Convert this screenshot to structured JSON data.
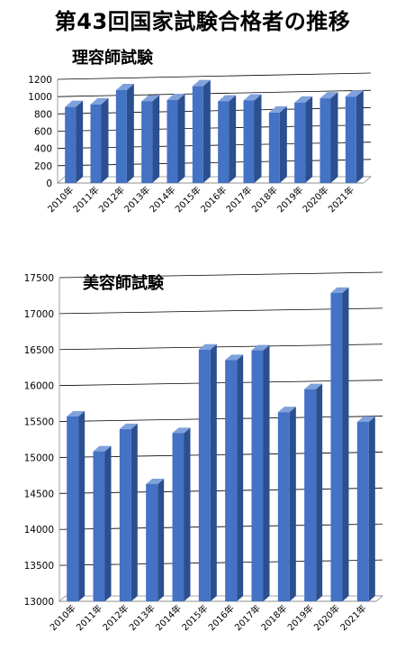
{
  "main_title": "第43回国家試験合格者の推移",
  "chart_data": [
    {
      "type": "bar",
      "title": "理容師試験",
      "categories": [
        "2010年",
        "2011年",
        "2012年",
        "2013年",
        "2014年",
        "2015年",
        "2016年",
        "2017年",
        "2018年",
        "2019年",
        "2020年",
        "2021年"
      ],
      "values": [
        880,
        910,
        1075,
        945,
        960,
        1120,
        945,
        955,
        815,
        930,
        980,
        1000
      ],
      "ylim": [
        0,
        1200
      ],
      "yticks": [
        0,
        200,
        400,
        600,
        800,
        1000,
        1200
      ],
      "grid": true,
      "legend": "none",
      "colors": {
        "bar": "#4472c4",
        "bar_side": "#2b4f8f",
        "bar_top": "#7fa1dc",
        "grid": "#000000"
      }
    },
    {
      "type": "bar",
      "title": "美容師試験",
      "categories": [
        "2010年",
        "2011年",
        "2012年",
        "2013年",
        "2014年",
        "2015年",
        "2016年",
        "2017年",
        "2018年",
        "2019年",
        "2020年",
        "2021年"
      ],
      "values": [
        15570,
        15085,
        15395,
        14630,
        15340,
        16500,
        16355,
        16490,
        15630,
        15950,
        17290,
        15495
      ],
      "ylim": [
        13000,
        17500
      ],
      "yticks": [
        13000,
        13500,
        14000,
        14500,
        15000,
        15500,
        16000,
        16500,
        17000,
        17500
      ],
      "grid": true,
      "legend": "none",
      "colors": {
        "bar": "#4472c4",
        "bar_side": "#2b4f8f",
        "bar_top": "#7fa1dc",
        "grid": "#000000"
      }
    }
  ]
}
